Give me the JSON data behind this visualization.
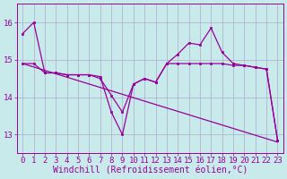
{
  "background_color": "#c8eaea",
  "grid_color": "#aaaacc",
  "line_color": "#990099",
  "xlabel": "Windchill (Refroidissement éolien,°C)",
  "xlabel_fontsize": 7.0,
  "tick_fontsize": 6.5,
  "yticks": [
    13,
    14,
    15,
    16
  ],
  "ylim": [
    12.5,
    16.5
  ],
  "xlim": [
    -0.5,
    23.5
  ],
  "xticks": [
    0,
    1,
    2,
    3,
    4,
    5,
    6,
    7,
    8,
    9,
    10,
    11,
    12,
    13,
    14,
    15,
    16,
    17,
    18,
    19,
    20,
    21,
    22,
    23
  ],
  "curve1_x": [
    0,
    1,
    2,
    3,
    4,
    5,
    6,
    7,
    8,
    9,
    10,
    11,
    12,
    13,
    14,
    15,
    16,
    17,
    18,
    19,
    20,
    21,
    22,
    23
  ],
  "curve1_y": [
    15.7,
    16.0,
    14.65,
    14.65,
    14.6,
    14.6,
    14.6,
    14.55,
    13.6,
    13.0,
    14.35,
    14.5,
    14.4,
    14.9,
    15.15,
    15.45,
    15.4,
    15.85,
    15.2,
    14.9,
    14.85,
    14.8,
    14.75,
    12.85
  ],
  "curve2_x": [
    0,
    1,
    2,
    3,
    4,
    5,
    6,
    7,
    8,
    9,
    10,
    11,
    12,
    13,
    14,
    15,
    16,
    17,
    18,
    19,
    20,
    21,
    22,
    23
  ],
  "curve2_y": [
    14.9,
    14.9,
    14.65,
    14.65,
    14.6,
    14.6,
    14.6,
    14.5,
    14.05,
    13.6,
    14.35,
    14.5,
    14.4,
    14.9,
    14.9,
    14.9,
    14.9,
    14.9,
    14.9,
    14.85,
    14.85,
    14.8,
    14.75,
    12.85
  ],
  "trend_x": [
    0,
    23
  ],
  "trend_y": [
    14.9,
    12.8
  ]
}
